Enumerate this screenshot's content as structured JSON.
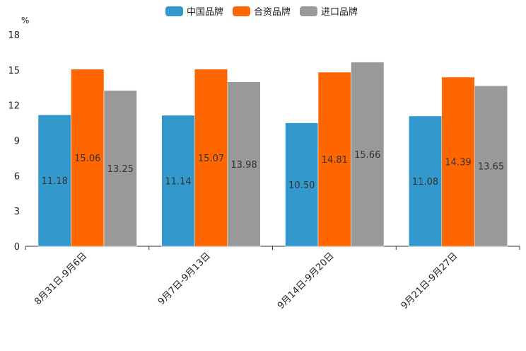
{
  "chart_data": {
    "type": "bar",
    "title": "",
    "ylabel": "%",
    "xlabel": "",
    "ylim": [
      0,
      18
    ],
    "yticks": [
      0,
      3,
      6,
      9,
      12,
      15,
      18
    ],
    "categories": [
      "8月31日-9月6日",
      "9月7日-9月13日",
      "9月14日-9月20日",
      "9月21日-9月27日"
    ],
    "series": [
      {
        "name": "中国品牌",
        "color": "#3399CC",
        "values": [
          11.18,
          11.14,
          10.5,
          11.08
        ]
      },
      {
        "name": "合资品牌",
        "color": "#FF6600",
        "values": [
          15.06,
          15.07,
          14.81,
          14.39
        ]
      },
      {
        "name": "进口品牌",
        "color": "#999999",
        "values": [
          13.25,
          13.98,
          15.66,
          13.65
        ]
      }
    ],
    "value_format": 2,
    "legend_position": "top-center",
    "grid": false
  }
}
